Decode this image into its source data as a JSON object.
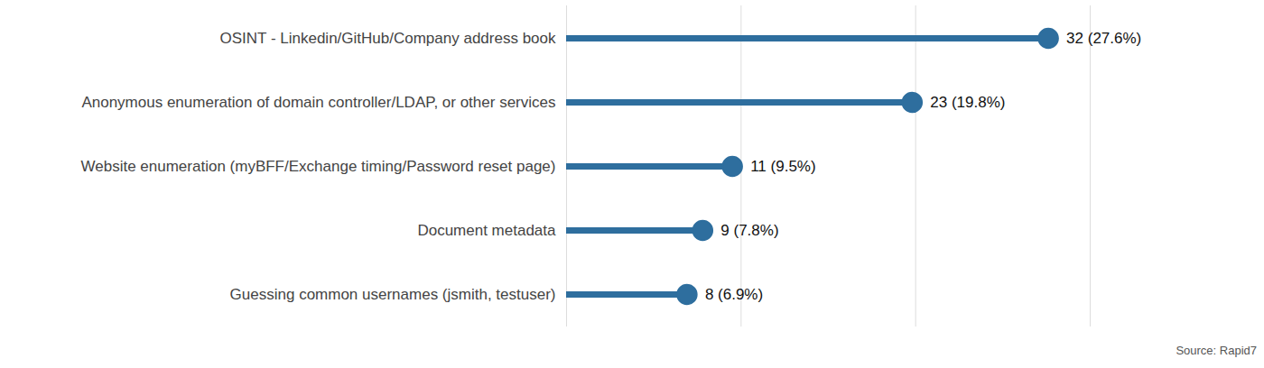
{
  "chart_data": {
    "type": "lollipop",
    "orientation": "horizontal",
    "categories": [
      "OSINT - Linkedin/GitHub/Company address book",
      "Anonymous enumeration of domain controller/LDAP, or other services",
      "Website enumeration (myBFF/Exchange timing/Password reset page)",
      "Document metadata",
      "Guessing common usernames (jsmith, testuser)"
    ],
    "values": [
      27.6,
      19.8,
      9.5,
      7.8,
      6.9
    ],
    "value_labels": [
      "32 (27.6%)",
      "23 (19.8%)",
      "11 (9.5%)",
      "9 (7.8%)",
      "8 (6.9%)"
    ],
    "data_labels": true,
    "color": "#2e6e9e",
    "xlim": [
      0,
      30
    ],
    "xticks": [
      0,
      10,
      20,
      30
    ],
    "grid": true,
    "tick_labels": "y",
    "source": "Source: Rapid7"
  }
}
